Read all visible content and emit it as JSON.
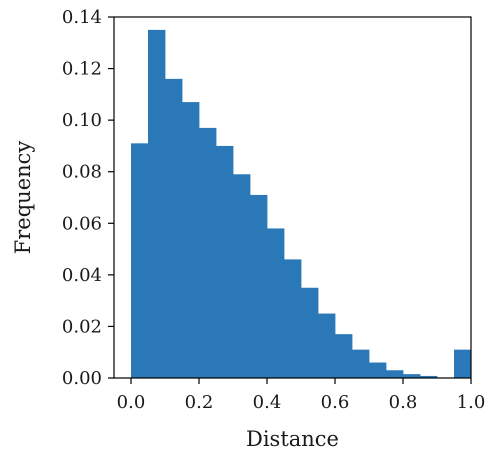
{
  "chart_data": {
    "type": "bar",
    "bin_edges": [
      0.0,
      0.05,
      0.1,
      0.15,
      0.2,
      0.25,
      0.3,
      0.35,
      0.4,
      0.45,
      0.5,
      0.55,
      0.6,
      0.65,
      0.7,
      0.75,
      0.8,
      0.85,
      0.9,
      0.95,
      1.0
    ],
    "values": [
      0.091,
      0.135,
      0.116,
      0.107,
      0.097,
      0.09,
      0.079,
      0.071,
      0.058,
      0.046,
      0.035,
      0.025,
      0.017,
      0.011,
      0.006,
      0.003,
      0.0015,
      0.0008,
      0.0,
      0.011
    ],
    "xlabel": "Distance",
    "ylabel": "Frequency",
    "xlim": [
      -0.05,
      1.0
    ],
    "ylim": [
      0.0,
      0.14
    ],
    "xticks": [
      0.0,
      0.2,
      0.4,
      0.6,
      0.8,
      1.0
    ],
    "xtick_labels": [
      "0.0",
      "0.2",
      "0.4",
      "0.6",
      "0.8",
      "1.0"
    ],
    "yticks": [
      0.0,
      0.02,
      0.04,
      0.06,
      0.08,
      0.1,
      0.12,
      0.14
    ],
    "ytick_labels": [
      "0.00",
      "0.02",
      "0.04",
      "0.06",
      "0.08",
      "0.10",
      "0.12",
      "0.14"
    ],
    "grid": false,
    "bar_color": "#2a78b8"
  }
}
